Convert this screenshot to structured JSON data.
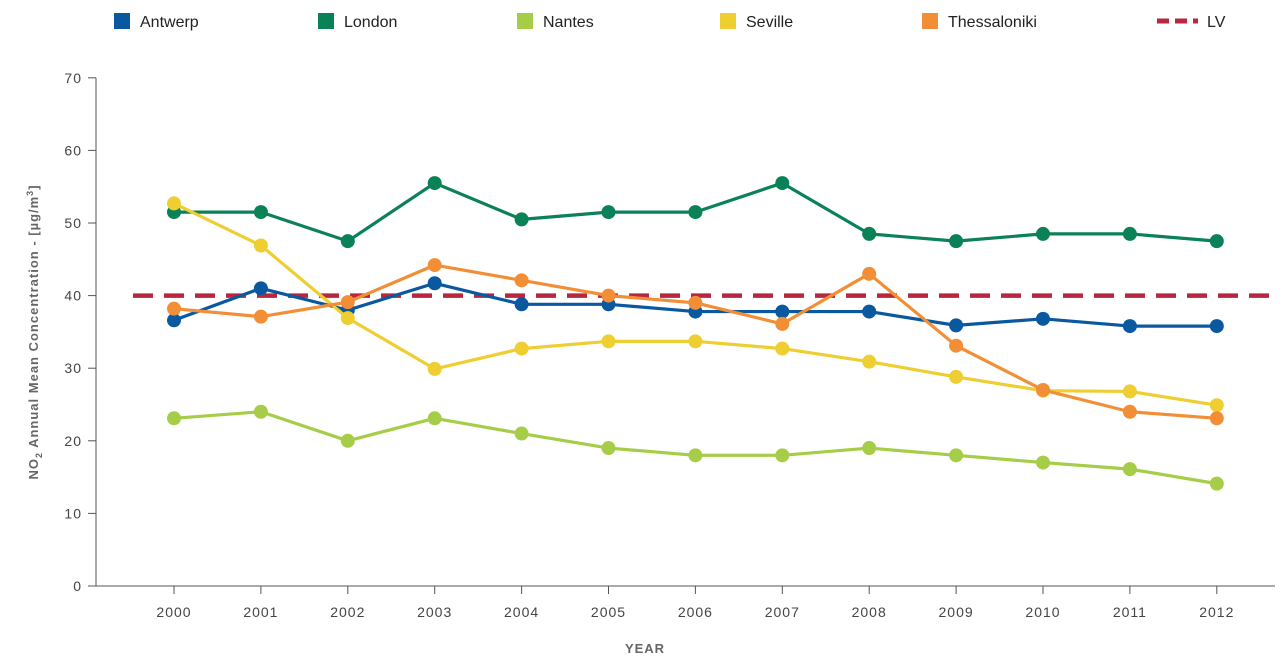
{
  "chart_data": {
    "type": "line",
    "title": "",
    "xlabel": "YEAR",
    "ylabel": {
      "prefix": "NO",
      "sub": "2",
      "rest": " Annual Mean Concentration - [µg/m",
      "sup": "3",
      "end": "]"
    },
    "ylim": [
      0,
      70
    ],
    "yticks": [
      0,
      10,
      20,
      30,
      40,
      50,
      60,
      70
    ],
    "x": [
      "2000",
      "2001",
      "2002",
      "2003",
      "2004",
      "2005",
      "2006",
      "2007",
      "2008",
      "2009",
      "2010",
      "2011",
      "2012"
    ],
    "series": [
      {
        "name": "Antwerp",
        "color": "#0a58a0",
        "values": [
          36.6,
          41,
          38,
          41.7,
          38.8,
          38.8,
          37.8,
          37.8,
          37.8,
          35.9,
          36.8,
          35.8,
          35.8
        ]
      },
      {
        "name": "London",
        "color": "#0b8157",
        "values": [
          51.5,
          51.5,
          47.5,
          55.5,
          50.5,
          51.5,
          51.5,
          55.5,
          48.5,
          47.5,
          48.5,
          48.5,
          47.5
        ]
      },
      {
        "name": "Nantes",
        "color": "#a6cd48",
        "values": [
          23.1,
          24,
          20,
          23.1,
          21,
          19,
          18,
          18,
          19,
          18,
          17,
          16.1,
          14.1
        ]
      },
      {
        "name": "Seville",
        "color": "#eece30",
        "values": [
          52.7,
          46.9,
          36.9,
          29.9,
          32.7,
          33.7,
          33.7,
          32.7,
          30.9,
          28.8,
          26.9,
          26.8,
          24.9
        ]
      },
      {
        "name": "Thessaloniki",
        "color": "#f28f36",
        "values": [
          38.2,
          37.1,
          39.1,
          44.2,
          42.1,
          40,
          39,
          36.1,
          43,
          33.1,
          27,
          24,
          23.1
        ]
      }
    ],
    "reference_line": {
      "name": "LV",
      "value": 40,
      "color": "#b8263f",
      "style": "dashed"
    },
    "grid": false,
    "legend_position": "top"
  }
}
